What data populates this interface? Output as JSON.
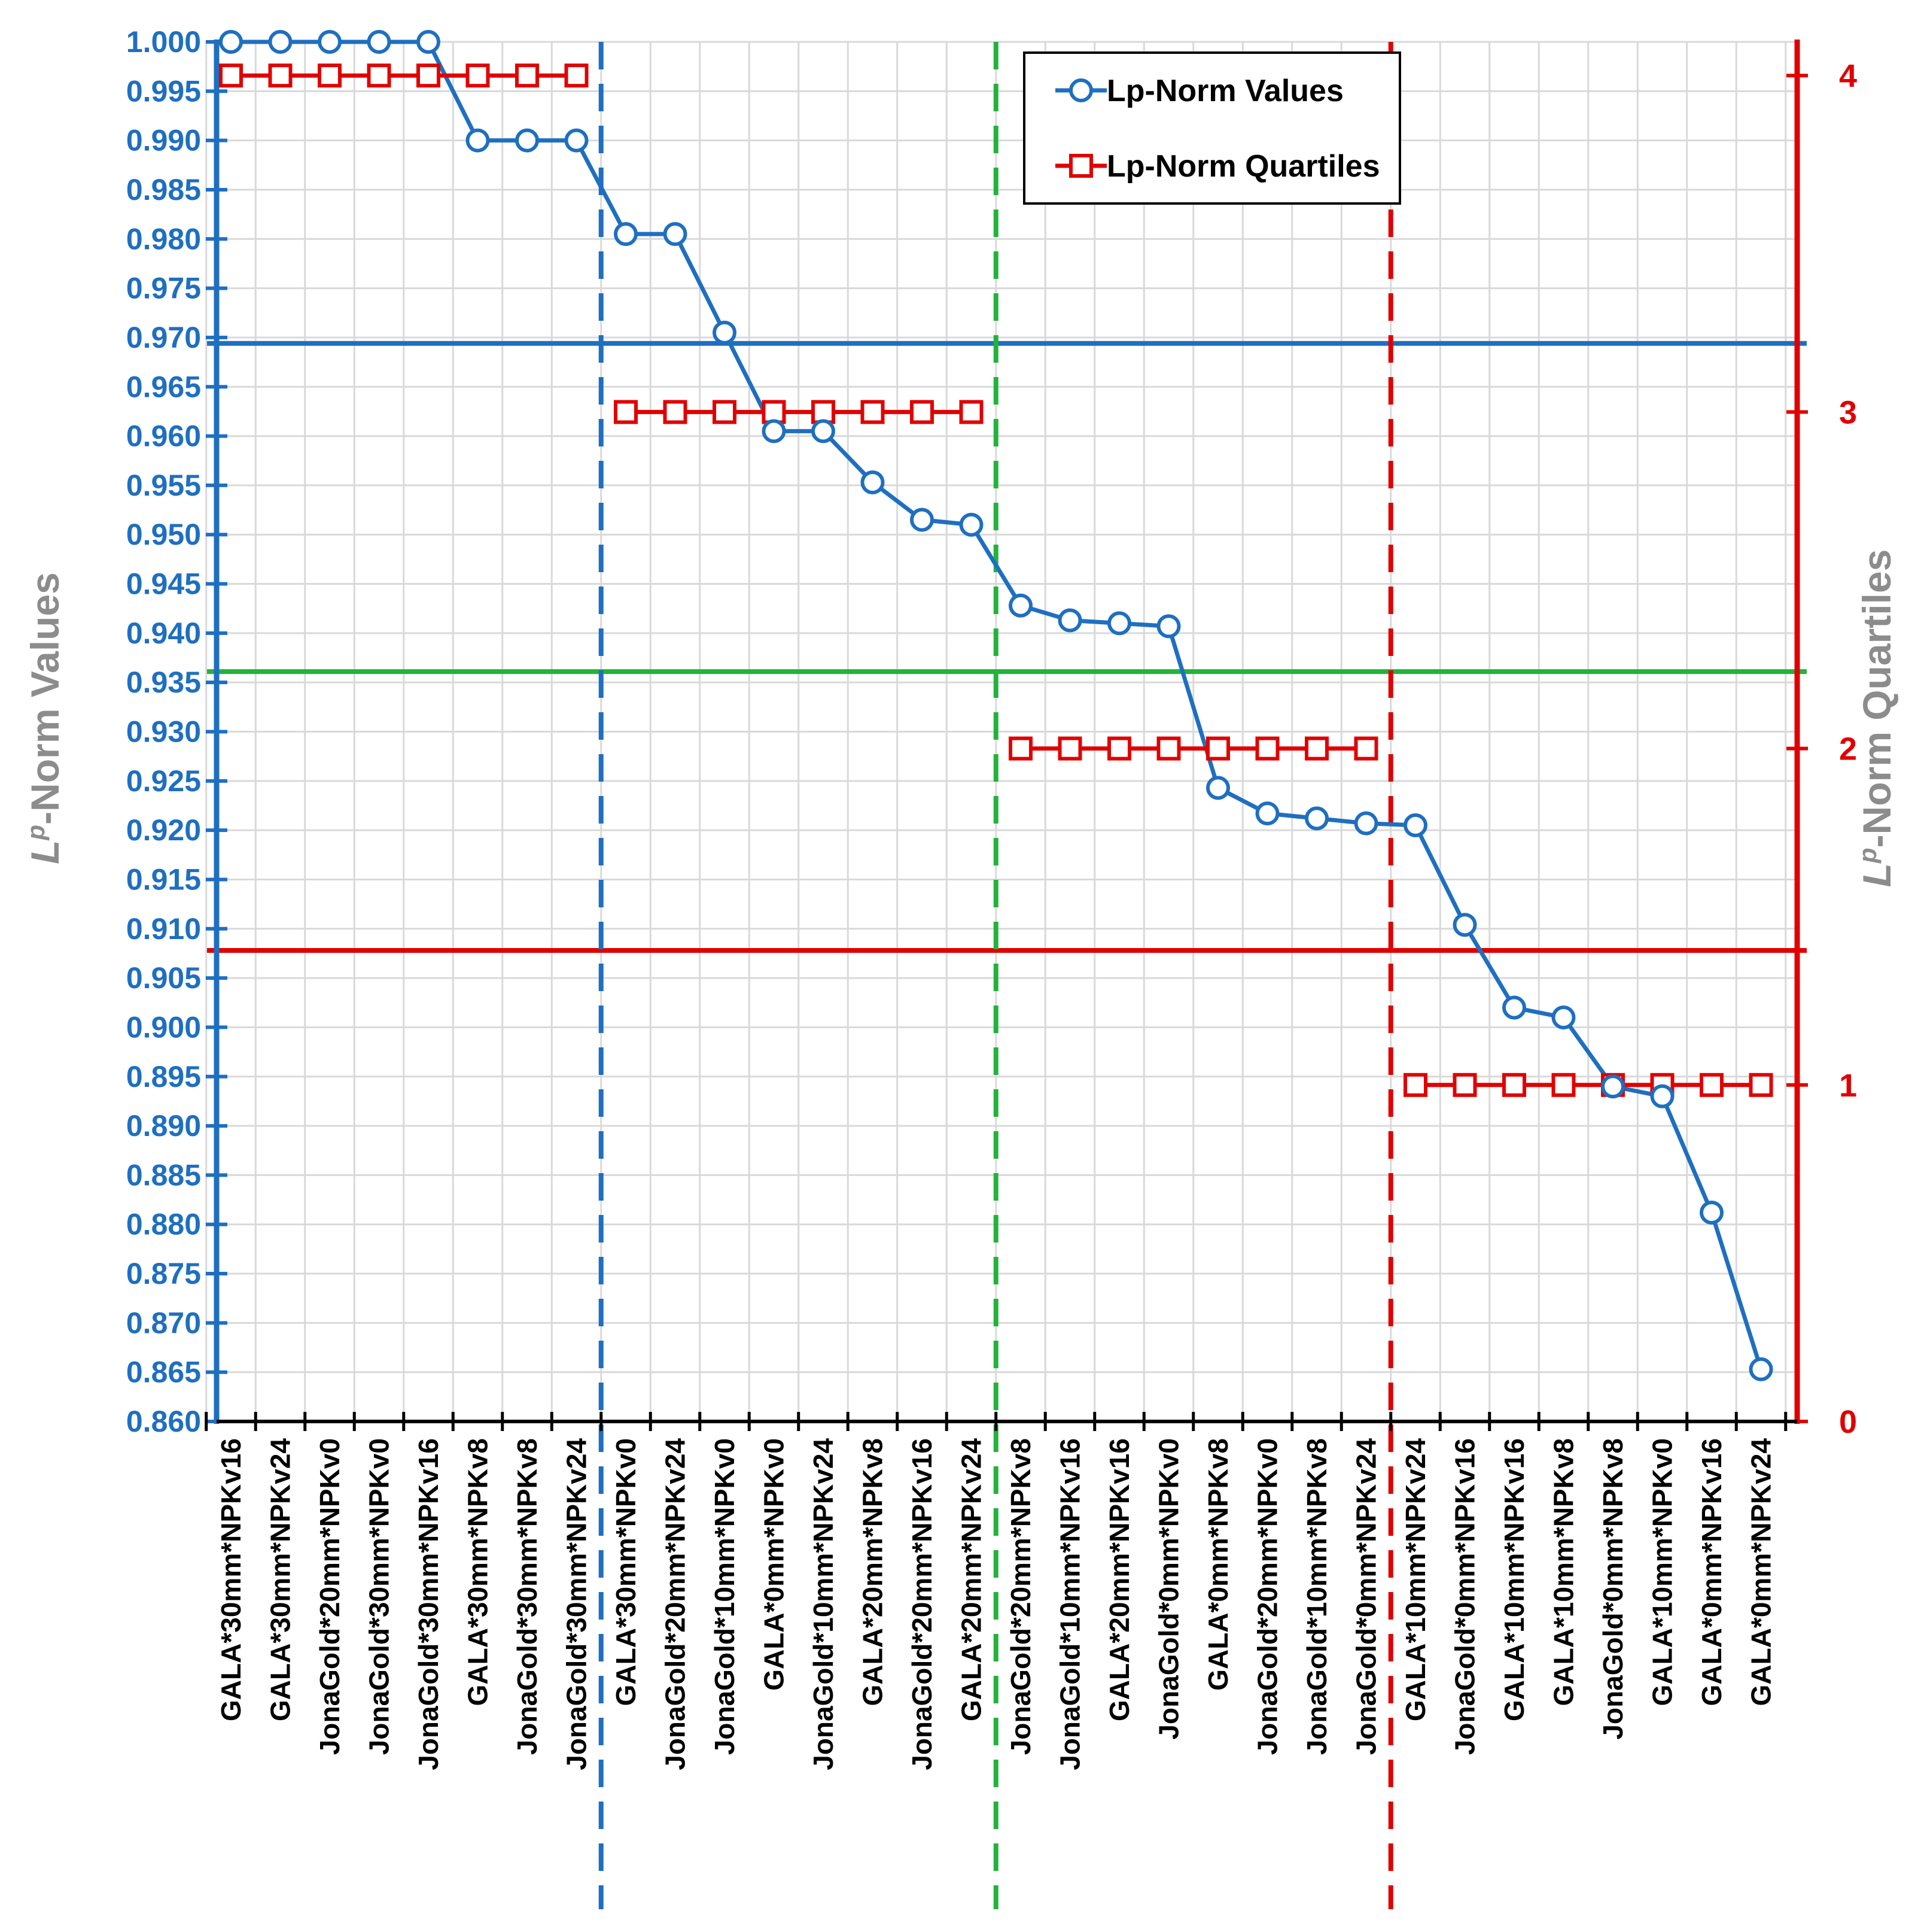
{
  "colors": {
    "values": "#1f6fc0",
    "quartiles": "#e00000",
    "threshold_mid": "#22b33a",
    "grid": "#d9d9d9",
    "axis_title": "#8c8c8c"
  },
  "chart_data": {
    "type": "line",
    "title": "",
    "xlabel": "",
    "ylabel": "-Norm Values",
    "ylabel_symbol": "L",
    "ylabel_superscript": "p",
    "y2label": "-Norm Quartiles",
    "y2label_symbol": "L",
    "y2label_superscript": "p",
    "ylim": [
      0.86,
      1.0
    ],
    "y2lim": [
      0,
      4.1
    ],
    "yticks": [
      "0.860",
      "0.865",
      "0.870",
      "0.875",
      "0.880",
      "0.885",
      "0.890",
      "0.895",
      "0.900",
      "0.905",
      "0.910",
      "0.915",
      "0.920",
      "0.925",
      "0.930",
      "0.935",
      "0.940",
      "0.945",
      "0.950",
      "0.955",
      "0.960",
      "0.965",
      "0.970",
      "0.975",
      "0.980",
      "0.985",
      "0.990",
      "0.995",
      "1.000"
    ],
    "y2ticks": [
      "0",
      "1",
      "2",
      "3",
      "4"
    ],
    "grid": true,
    "legend_position": "top-right",
    "categories": [
      "GALA*30mm*NPKv16",
      "GALA*30mm*NPKv24",
      "JonaGold*20mm*NPKv0",
      "JonaGold*30mm*NPKv0",
      "JonaGold*30mm*NPKv16",
      "GALA*30mm*NPKv8",
      "JonaGold*30mm*NPKv8",
      "JonaGold*30mm*NPKv24",
      "GALA*30mm*NPKv0",
      "JonaGold*20mm*NPKv24",
      "JonaGold*10mm*NPKv0",
      "GALA*0mm*NPKv0",
      "JonaGold*10mm*NPKv24",
      "GALA*20mm*NPKv8",
      "JonaGold*20mm*NPKv16",
      "GALA*20mm*NPKv24",
      "JonaGold*20mm*NPKv8",
      "JonaGold*10mm*NPKv16",
      "GALA*20mm*NPKv16",
      "JonaGold*0mm*NPKv0",
      "GALA*0mm*NPKv8",
      "JonaGold*20mm*NPKv0",
      "JonaGold*10mm*NPKv8",
      "JonaGold*0mm*NPKv24",
      "GALA*10mm*NPKv24",
      "JonaGold*0mm*NPKv16",
      "GALA*10mm*NPKv16",
      "GALA*10mm*NPKv8",
      "JonaGold*0mm*NPKv8",
      "GALA*10mm*NPKv0",
      "GALA*0mm*NPKv16",
      "GALA*0mm*NPKv24"
    ],
    "series": [
      {
        "name": "Lp-Norm Values",
        "axis": "left",
        "marker": "circle",
        "values": [
          1.0,
          1.0,
          1.0,
          1.0,
          1.0,
          0.99,
          0.99,
          0.99,
          0.9805,
          0.9805,
          0.9705,
          0.9605,
          0.9605,
          0.9553,
          0.9515,
          0.951,
          0.9428,
          0.9413,
          0.941,
          0.9407,
          0.9243,
          0.9217,
          0.9212,
          0.9207,
          0.9205,
          0.9104,
          0.902,
          0.901,
          0.894,
          0.893,
          0.8812,
          0.8653
        ]
      },
      {
        "name": "Lp-Norm Quartiles",
        "axis": "right",
        "marker": "square",
        "values": [
          4,
          4,
          4,
          4,
          4,
          4,
          4,
          4,
          3,
          3,
          3,
          3,
          3,
          3,
          3,
          3,
          2,
          2,
          2,
          2,
          2,
          2,
          2,
          2,
          1,
          1,
          1,
          1,
          1,
          1,
          1,
          1
        ]
      }
    ],
    "thresholds": [
      {
        "y": 0.9694,
        "color": "values"
      },
      {
        "y": 0.9361,
        "color": "threshold_mid"
      },
      {
        "y": 0.9078,
        "color": "quartiles"
      }
    ],
    "quartile_dividers": [
      {
        "after_index": 7,
        "color": "values"
      },
      {
        "after_index": 15,
        "color": "threshold_mid"
      },
      {
        "after_index": 23,
        "color": "quartiles"
      }
    ]
  }
}
